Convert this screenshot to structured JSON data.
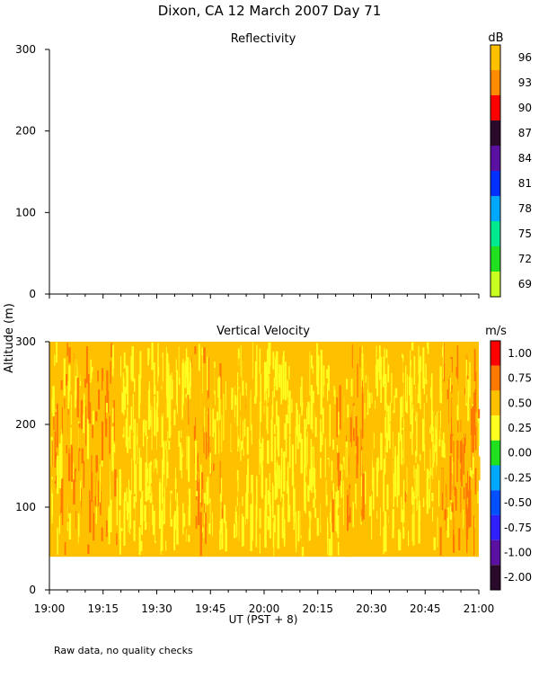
{
  "figure": {
    "title": "Dixon, CA 12 March 2007  Day  71",
    "ylabel": "Altitude (m)",
    "xlabel": "UT  (PST + 8)",
    "footnote": "Raw data, no quality checks"
  },
  "chart_data": [
    {
      "type": "heatmap",
      "title": "Reflectivity",
      "xlabel": "UT  (PST + 8)",
      "ylabel": "Altitude (m)",
      "xlim": [
        "19:00",
        "21:00"
      ],
      "ylim": [
        0,
        300
      ],
      "x_ticks": [
        "19:00",
        "19:15",
        "19:30",
        "19:45",
        "20:00",
        "20:15",
        "20:30",
        "20:45",
        "21:00"
      ],
      "y_ticks": [
        0,
        100,
        200,
        300
      ],
      "colorbar": {
        "unit": "dB",
        "ticks": [
          "96",
          "93",
          "90",
          "87",
          "84",
          "81",
          "78",
          "75",
          "72",
          "69"
        ],
        "colors": [
          "#ffc000",
          "#ff8c00",
          "#ff0000",
          "#2a0a2a",
          "#5a10a0",
          "#0030ff",
          "#00a8ff",
          "#00e890",
          "#20e020",
          "#c8ff20"
        ]
      },
      "data": "no echo recorded (panel blank)"
    },
    {
      "type": "heatmap",
      "title": "Vertical Velocity",
      "xlabel": "UT  (PST + 8)",
      "ylabel": "Altitude (m)",
      "xlim": [
        "19:00",
        "21:00"
      ],
      "ylim": [
        0,
        300
      ],
      "x_ticks": [
        "19:00",
        "19:15",
        "19:30",
        "19:45",
        "20:00",
        "20:15",
        "20:30",
        "20:45",
        "21:00"
      ],
      "y_ticks": [
        0,
        100,
        200,
        300
      ],
      "colorbar": {
        "unit": "m/s",
        "ticks": [
          "1.00",
          "0.75",
          "0.50",
          "0.25",
          "0.00",
          "-0.25",
          "-0.50",
          "-0.75",
          "-1.00",
          "-2.00"
        ],
        "colors": [
          "#ff0000",
          "#ff7800",
          "#ffc000",
          "#ffff20",
          "#20e020",
          "#00a8ff",
          "#0050ff",
          "#3020ff",
          "#5a10a0",
          "#2a0a2a"
        ]
      },
      "data_altitude_range": [
        40,
        300
      ],
      "data_value_range": [
        0.25,
        1.0
      ],
      "dominant_value": 0.5
    }
  ]
}
